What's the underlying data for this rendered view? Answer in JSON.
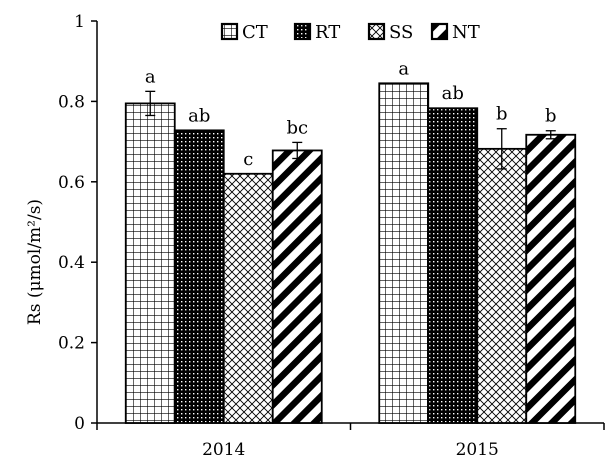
{
  "chart_data": {
    "type": "bar",
    "ylabel": "Rs (μmol/m²/s)",
    "ylim": [
      0,
      1
    ],
    "yticks": [
      0,
      0.2,
      0.4,
      0.6,
      0.8,
      1
    ],
    "ytick_labels": [
      "0",
      "0.2",
      "0.4",
      "0.6",
      "0.8",
      "1"
    ],
    "categories": [
      "2014",
      "2015"
    ],
    "grid": false,
    "legend_position": "top-center",
    "series": [
      {
        "name": "CT",
        "values": [
          0.795,
          0.845
        ],
        "errors": [
          0.03,
          0.0
        ],
        "significance": [
          "a",
          "a"
        ],
        "pattern": "grid"
      },
      {
        "name": "RT",
        "values": [
          0.728,
          0.783
        ],
        "errors": [
          0.0,
          0.0
        ],
        "significance": [
          "ab",
          "ab"
        ],
        "pattern": "dense-dots"
      },
      {
        "name": "SS",
        "values": [
          0.62,
          0.682
        ],
        "errors": [
          0.0,
          0.05
        ],
        "significance": [
          "c",
          "b"
        ],
        "pattern": "crosshatch"
      },
      {
        "name": "NT",
        "values": [
          0.678,
          0.717
        ],
        "errors": [
          0.02,
          0.01
        ],
        "significance": [
          "bc",
          "b"
        ],
        "pattern": "diagonal-stripes"
      }
    ]
  }
}
